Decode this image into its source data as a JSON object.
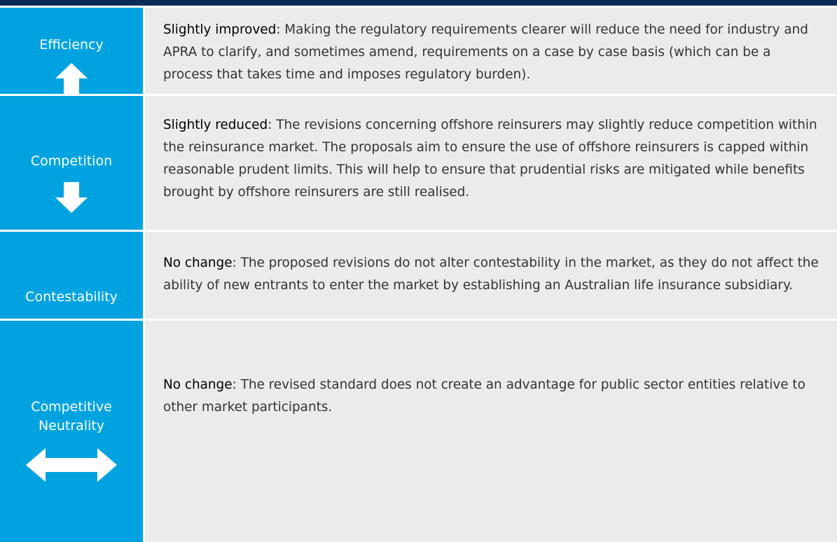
{
  "rows": [
    {
      "label": "Efficiency",
      "heading": "Slightly improved",
      "text": ": Making the regulatory requirements clearer will reduce the need for industry and APRA to clarify, and sometimes amend, requirements on a case by case basis (which can be a process that takes time and imposes regulatory burden)."
    },
    {
      "label": "Competition",
      "heading": "Slightly reduced",
      "text": ": The revisions concerning offshore reinsurers may slightly reduce competition within the reinsurance market. The proposals aim to ensure the use of offshore reinsurers is capped within reasonable prudent limits. This will help to ensure that prudential risks are mitigated while benefits brought by offshore reinsurers are still realised."
    },
    {
      "label": "Contestability",
      "heading": "No change",
      "text": ": The proposed revisions do not alter contestability in the market, as they do not affect the ability of new entrants to enter the market by establishing an Australian life insurance subsidiary."
    },
    {
      "label": "Competitive Neutrality",
      "heading": "No change",
      "text": ": The revised standard does not create an advantage for public sector entities relative to other market participants."
    }
  ]
}
